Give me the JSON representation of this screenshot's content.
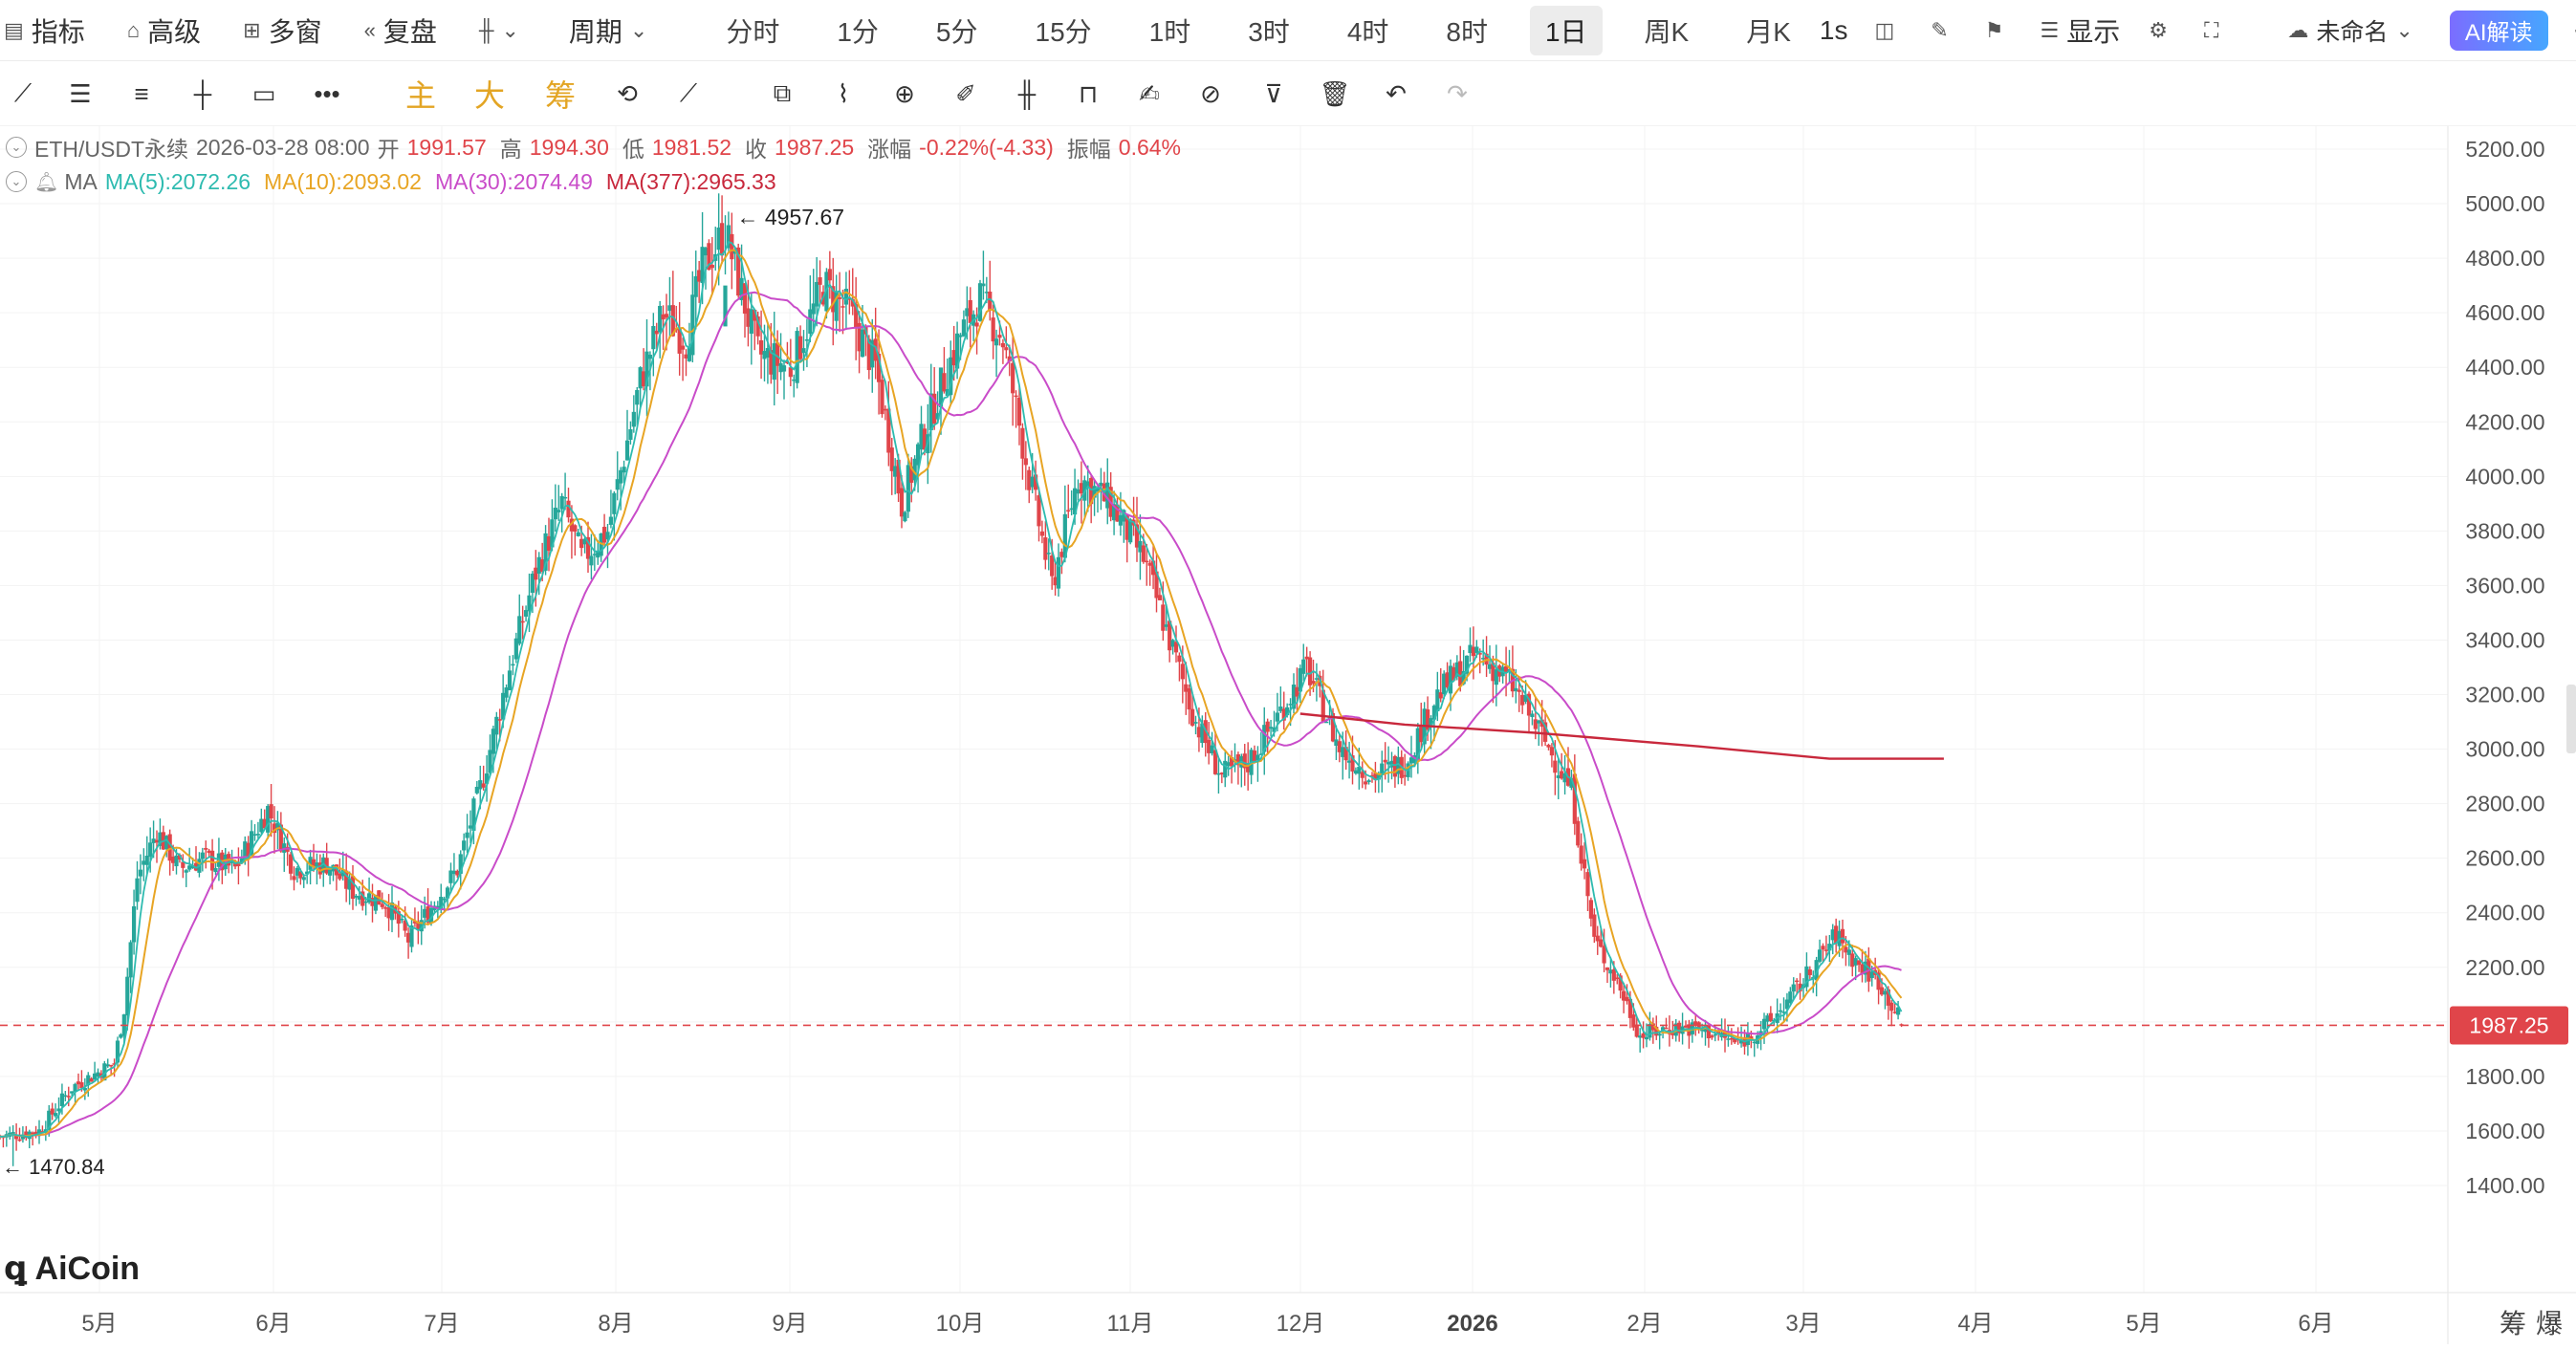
{
  "topbar": {
    "indicators": "指标",
    "advanced": "高级",
    "multi": "多窗",
    "replay": "复盘",
    "period": "周期",
    "periods": [
      "分时",
      "1分",
      "5分",
      "15分",
      "1时",
      "3时",
      "4时",
      "8时",
      "1日",
      "周K",
      "月K"
    ],
    "active_period": "1日",
    "speed": "1s",
    "display": "显示",
    "layout_name": "未命名",
    "ai": "AI解读"
  },
  "toolbar2": {
    "main": "主",
    "big": "大",
    "chips": "筹"
  },
  "info": {
    "symbol": "ETH/USDT永续",
    "datetime": "2026-03-28 08:00",
    "open_label": "开",
    "open": "1991.57",
    "high_label": "高",
    "high": "1994.30",
    "low_label": "低",
    "low": "1981.52",
    "close_label": "收",
    "close": "1987.25",
    "change_label": "涨幅",
    "change": "-0.22%(-4.33)",
    "amp_label": "振幅",
    "amp": "0.64%",
    "ma_label": "MA",
    "ma5": "MA(5):2072.26",
    "ma10": "MA(10):2093.02",
    "ma30": "MA(30):2074.49",
    "ma377": "MA(377):2965.33"
  },
  "colors": {
    "up": "#26a69a",
    "down": "#e0454a",
    "ma5": "#2ebbb0",
    "ma10": "#e8a524",
    "ma30": "#c94cc9",
    "ma377": "#c8283c",
    "ai_gradient_start": "#7b6dff",
    "ai_gradient_end": "#46a6ff"
  },
  "chart_data": {
    "type": "candlestick",
    "y_ticks": [
      "5200.00",
      "5000.00",
      "4800.00",
      "4600.00",
      "4400.00",
      "4200.00",
      "4000.00",
      "3800.00",
      "3600.00",
      "3400.00",
      "3200.00",
      "3000.00",
      "2800.00",
      "2600.00",
      "2400.00",
      "2200.00",
      "2000.00",
      "1800.00",
      "1600.00",
      "1400.00"
    ],
    "ylim": [
      1400,
      5200
    ],
    "x_ticks": [
      "5月",
      "6月",
      "7月",
      "8月",
      "9月",
      "10月",
      "11月",
      "12月",
      "2026",
      "2月",
      "3月",
      "4月",
      "5月",
      "6月"
    ],
    "last_price": "1987.25",
    "max_label": "4957.67",
    "min_label": "1470.84",
    "watermark": "AiCoin",
    "bottom_right": [
      "筹",
      "爆"
    ],
    "price_path": [
      [
        0,
        1580
      ],
      [
        12,
        1600
      ],
      [
        22,
        1760
      ],
      [
        35,
        1850
      ],
      [
        38,
        2050
      ],
      [
        42,
        2530
      ],
      [
        48,
        2700
      ],
      [
        55,
        2560
      ],
      [
        62,
        2600
      ],
      [
        72,
        2560
      ],
      [
        82,
        2780
      ],
      [
        90,
        2560
      ],
      [
        100,
        2580
      ],
      [
        108,
        2480
      ],
      [
        118,
        2440
      ],
      [
        125,
        2300
      ],
      [
        132,
        2420
      ],
      [
        140,
        2560
      ],
      [
        148,
        2900
      ],
      [
        156,
        3300
      ],
      [
        164,
        3650
      ],
      [
        172,
        3900
      ],
      [
        178,
        3700
      ],
      [
        186,
        3800
      ],
      [
        196,
        4350
      ],
      [
        203,
        4600
      ],
      [
        210,
        4500
      ],
      [
        215,
        4760
      ],
      [
        222,
        4900
      ],
      [
        232,
        4450
      ],
      [
        242,
        4400
      ],
      [
        252,
        4700
      ],
      [
        260,
        4600
      ],
      [
        268,
        4400
      ],
      [
        276,
        3900
      ],
      [
        284,
        4200
      ],
      [
        294,
        4520
      ],
      [
        300,
        4650
      ],
      [
        307,
        4500
      ],
      [
        315,
        4000
      ],
      [
        322,
        3600
      ],
      [
        330,
        4000
      ],
      [
        340,
        3900
      ],
      [
        350,
        3700
      ],
      [
        358,
        3400
      ],
      [
        366,
        3100
      ],
      [
        374,
        2900
      ],
      [
        382,
        2950
      ],
      [
        390,
        3100
      ],
      [
        400,
        3300
      ],
      [
        410,
        3000
      ],
      [
        420,
        2900
      ],
      [
        430,
        2950
      ],
      [
        440,
        3200
      ],
      [
        452,
        3350
      ],
      [
        462,
        3250
      ],
      [
        472,
        3050
      ],
      [
        481,
        2850
      ],
      [
        488,
        2300
      ],
      [
        495,
        2150
      ],
      [
        502,
        1950
      ],
      [
        512,
        1980
      ],
      [
        522,
        1970
      ],
      [
        532,
        1920
      ],
      [
        542,
        2000
      ],
      [
        552,
        2150
      ],
      [
        562,
        2320
      ],
      [
        568,
        2220
      ],
      [
        575,
        2150
      ],
      [
        582,
        2000
      ]
    ],
    "ma377_path": [
      [
        398,
        3130
      ],
      [
        430,
        3090
      ],
      [
        470,
        3060
      ],
      [
        520,
        3010
      ],
      [
        560,
        2965
      ],
      [
        595,
        2965
      ]
    ],
    "x_domain": [
      0,
      780
    ]
  }
}
